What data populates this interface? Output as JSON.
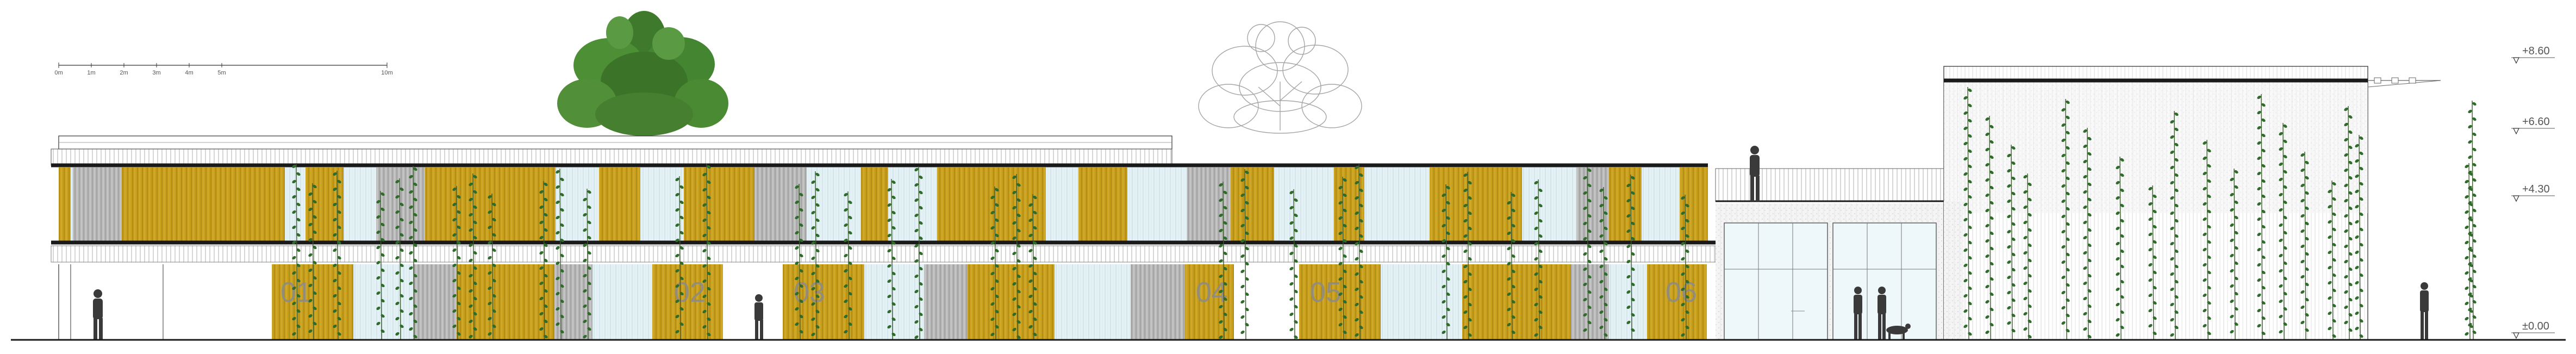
{
  "scale_bar": {
    "labels": [
      "0m",
      "1m",
      "2m",
      "3m",
      "4m",
      "5m",
      "10m"
    ]
  },
  "levels": {
    "l860": "+8.60",
    "l660": "+6.60",
    "l430": "+4.30",
    "l000": "±0.00"
  },
  "units": {
    "u01": "01",
    "u02": "02",
    "u03": "03",
    "u04": "04",
    "u05": "05",
    "u06": "06"
  },
  "colors": {
    "line": "#1f1f1f",
    "ochre_panel": "#c9a01c",
    "glass": "#e4f2f6",
    "grey_panel": "#a9a9a9",
    "foliage": "#2f6b2a",
    "foliage_outline": "#9a9a9a"
  }
}
